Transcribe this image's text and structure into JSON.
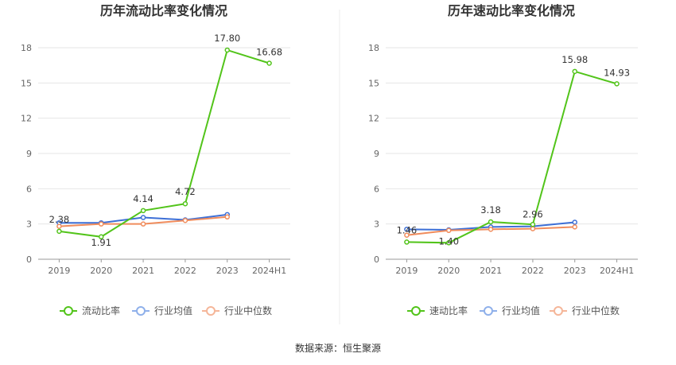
{
  "source": "数据来源：恒生聚源",
  "chart_data": [
    {
      "type": "line",
      "title": "历年流动比率变化情况",
      "categories": [
        "2019",
        "2020",
        "2021",
        "2022",
        "2023",
        "2024H1"
      ],
      "yticks": [
        "0",
        "3",
        "6",
        "9",
        "12",
        "15",
        "18"
      ],
      "ylim": [
        0,
        18
      ],
      "grid": true,
      "legend_position": "bottom",
      "series": [
        {
          "name": "流动比率",
          "color": "#52c41a",
          "values": [
            2.38,
            1.91,
            4.14,
            4.72,
            17.8,
            16.68
          ],
          "labels": [
            "2.38",
            "1.91",
            "4.14",
            "4.72",
            "17.80",
            "16.68"
          ]
        },
        {
          "name": "行业均值",
          "color": "#3d6fd6",
          "values": [
            3.1,
            3.1,
            3.55,
            3.35,
            3.8,
            null
          ]
        },
        {
          "name": "行业中位数",
          "color": "#f08c5c",
          "values": [
            2.8,
            3.0,
            3.0,
            3.3,
            3.6,
            null
          ]
        }
      ]
    },
    {
      "type": "line",
      "title": "历年速动比率变化情况",
      "categories": [
        "2019",
        "2020",
        "2021",
        "2022",
        "2023",
        "2024H1"
      ],
      "yticks": [
        "0",
        "3",
        "6",
        "9",
        "12",
        "15",
        "18"
      ],
      "ylim": [
        0,
        18
      ],
      "grid": true,
      "legend_position": "bottom",
      "series": [
        {
          "name": "速动比率",
          "color": "#52c41a",
          "values": [
            1.46,
            1.4,
            3.18,
            2.96,
            15.98,
            14.93
          ],
          "labels": [
            "1.46",
            "1.40",
            "3.18",
            "2.96",
            "15.98",
            "14.93"
          ]
        },
        {
          "name": "行业均值",
          "color": "#3d6fd6",
          "values": [
            2.55,
            2.5,
            2.75,
            2.8,
            3.15,
            null
          ]
        },
        {
          "name": "行业中位数",
          "color": "#f08c5c",
          "values": [
            2.05,
            2.45,
            2.55,
            2.6,
            2.75,
            null
          ]
        }
      ]
    }
  ]
}
